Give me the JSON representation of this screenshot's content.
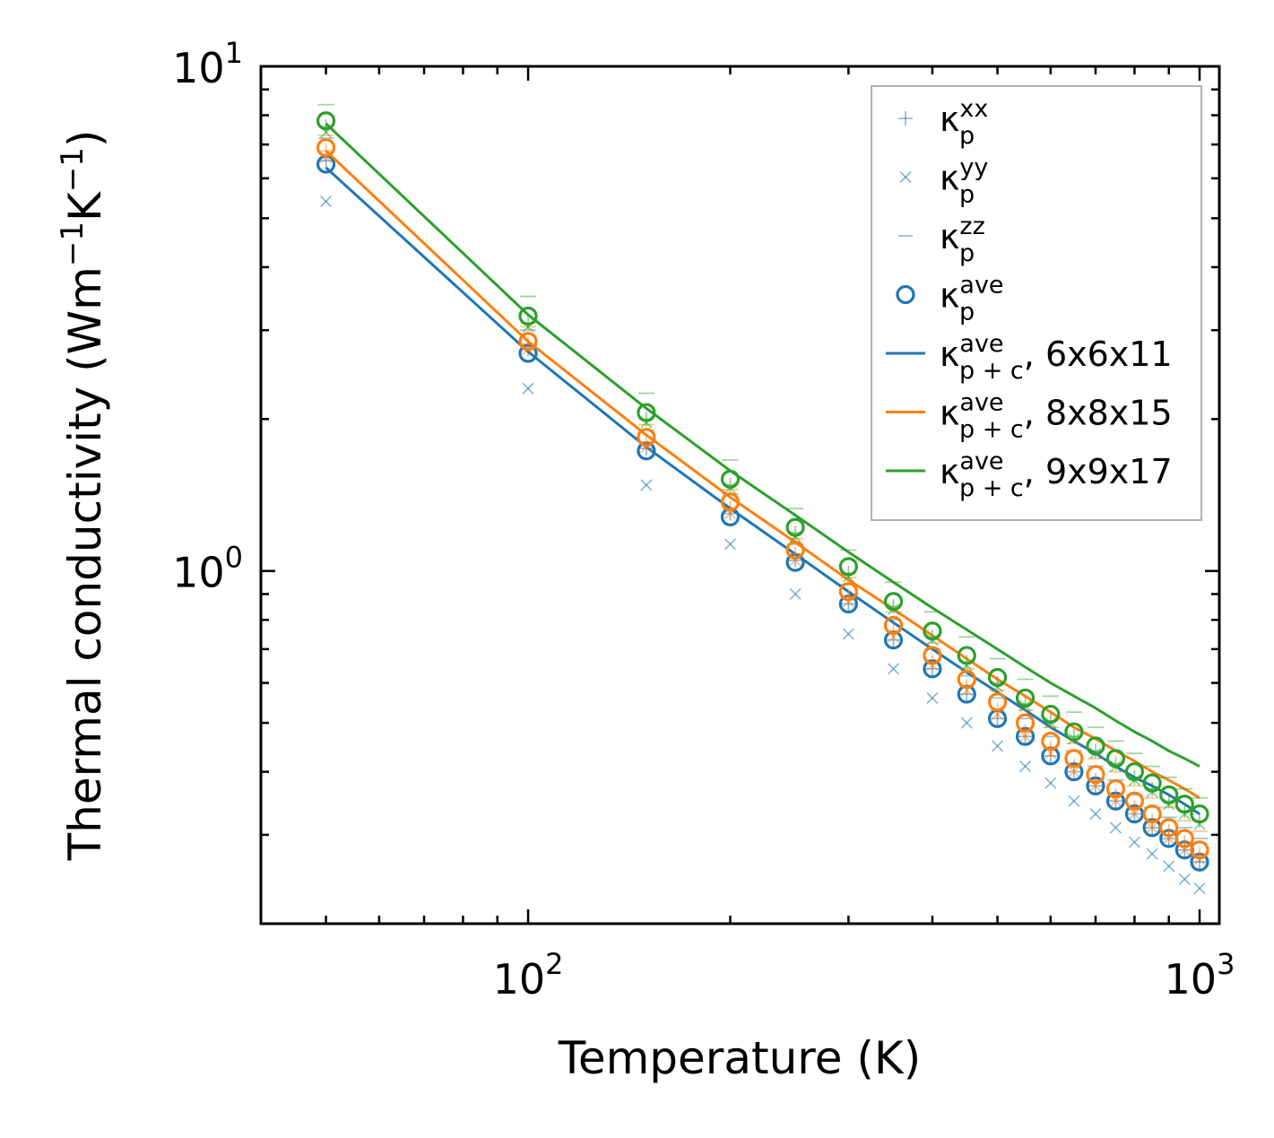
{
  "chart_data": {
    "type": "scatter",
    "title": "",
    "xlabel": "Temperature (K)",
    "ylabel_main": "Thermal conductivity (Wm",
    "ylabel_sup1": "−1",
    "ylabel_mid": "K",
    "ylabel_sup2": "−1",
    "ylabel_end": ")",
    "xscale": "log",
    "yscale": "log",
    "xlim": [
      40,
      1070
    ],
    "ylim": [
      0.2,
      10
    ],
    "x_ticks": [
      {
        "value": 100,
        "base": "10",
        "exp": "2"
      },
      {
        "value": 1000,
        "base": "10",
        "exp": "3"
      }
    ],
    "y_ticks": [
      {
        "value": 1,
        "base": "10",
        "exp": "0"
      },
      {
        "value": 10,
        "base": "10",
        "exp": "1"
      }
    ],
    "x": [
      50,
      100,
      150,
      200,
      250,
      300,
      350,
      400,
      450,
      500,
      550,
      600,
      650,
      700,
      750,
      800,
      850,
      900,
      950,
      1000
    ],
    "series": [
      {
        "name": "6x6x11",
        "color": "#1f77b4",
        "kxx": [
          6.5,
          2.75,
          1.75,
          1.3,
          1.05,
          0.86,
          0.73,
          0.64,
          0.57,
          0.51,
          0.47,
          0.43,
          0.4,
          0.375,
          0.35,
          0.33,
          0.31,
          0.295,
          0.28,
          0.265
        ],
        "kyy": [
          5.4,
          2.3,
          1.48,
          1.13,
          0.9,
          0.75,
          0.64,
          0.56,
          0.5,
          0.45,
          0.41,
          0.38,
          0.35,
          0.33,
          0.31,
          0.29,
          0.275,
          0.26,
          0.245,
          0.235
        ],
        "kzz": [
          7.2,
          3.0,
          1.9,
          1.42,
          1.13,
          0.94,
          0.8,
          0.7,
          0.62,
          0.56,
          0.51,
          0.47,
          0.44,
          0.41,
          0.385,
          0.36,
          0.34,
          0.325,
          0.31,
          0.295
        ],
        "kave": [
          6.4,
          2.7,
          1.73,
          1.28,
          1.04,
          0.86,
          0.73,
          0.64,
          0.57,
          0.51,
          0.47,
          0.43,
          0.4,
          0.375,
          0.35,
          0.33,
          0.31,
          0.295,
          0.28,
          0.265
        ],
        "kpc": [
          6.3,
          2.72,
          1.76,
          1.33,
          1.08,
          0.91,
          0.79,
          0.7,
          0.63,
          0.575,
          0.53,
          0.49,
          0.46,
          0.435,
          0.41,
          0.39,
          0.375,
          0.36,
          0.345,
          0.33
        ]
      },
      {
        "name": "8x8x15",
        "color": "#ff7f0e",
        "kxx": [
          6.8,
          2.82,
          1.8,
          1.33,
          1.08,
          0.89,
          0.76,
          0.66,
          0.59,
          0.53,
          0.48,
          0.445,
          0.41,
          0.385,
          0.36,
          0.34,
          0.32,
          0.305,
          0.29,
          0.275
        ],
        "kyy": [
          6.6,
          2.75,
          1.76,
          1.3,
          1.05,
          0.87,
          0.74,
          0.65,
          0.58,
          0.52,
          0.47,
          0.435,
          0.4,
          0.375,
          0.35,
          0.33,
          0.31,
          0.295,
          0.28,
          0.268
        ],
        "kzz": [
          7.3,
          3.05,
          1.95,
          1.45,
          1.16,
          0.97,
          0.83,
          0.72,
          0.64,
          0.58,
          0.53,
          0.49,
          0.455,
          0.425,
          0.4,
          0.375,
          0.355,
          0.34,
          0.32,
          0.305
        ],
        "kave": [
          6.9,
          2.85,
          1.84,
          1.37,
          1.1,
          0.91,
          0.78,
          0.68,
          0.61,
          0.55,
          0.5,
          0.46,
          0.425,
          0.395,
          0.37,
          0.35,
          0.33,
          0.31,
          0.295,
          0.28
        ],
        "kpc": [
          6.8,
          2.85,
          1.86,
          1.4,
          1.14,
          0.96,
          0.84,
          0.745,
          0.67,
          0.61,
          0.565,
          0.525,
          0.49,
          0.465,
          0.44,
          0.42,
          0.4,
          0.385,
          0.37,
          0.355
        ]
      },
      {
        "name": "9x9x17",
        "color": "#2ca02c",
        "kxx": [
          7.6,
          3.1,
          2.0,
          1.48,
          1.19,
          0.99,
          0.85,
          0.74,
          0.66,
          0.6,
          0.545,
          0.505,
          0.47,
          0.44,
          0.415,
          0.39,
          0.37,
          0.35,
          0.335,
          0.32
        ],
        "kyy": [
          7.4,
          3.05,
          1.97,
          1.46,
          1.17,
          0.975,
          0.84,
          0.73,
          0.65,
          0.59,
          0.54,
          0.5,
          0.465,
          0.435,
          0.41,
          0.385,
          0.365,
          0.345,
          0.33,
          0.315
        ],
        "kzz": [
          8.4,
          3.5,
          2.25,
          1.66,
          1.33,
          1.1,
          0.95,
          0.83,
          0.74,
          0.67,
          0.61,
          0.565,
          0.525,
          0.49,
          0.46,
          0.435,
          0.41,
          0.39,
          0.37,
          0.355
        ],
        "kave": [
          7.8,
          3.2,
          2.06,
          1.52,
          1.22,
          1.02,
          0.87,
          0.76,
          0.68,
          0.615,
          0.56,
          0.52,
          0.48,
          0.45,
          0.425,
          0.4,
          0.38,
          0.36,
          0.345,
          0.33
        ],
        "kpc": [
          7.7,
          3.22,
          2.1,
          1.58,
          1.29,
          1.09,
          0.95,
          0.845,
          0.765,
          0.7,
          0.645,
          0.6,
          0.565,
          0.535,
          0.505,
          0.48,
          0.46,
          0.44,
          0.425,
          0.41
        ]
      }
    ],
    "legend": {
      "position": "top-right",
      "entries": [
        {
          "marker": "plus",
          "sym": "κ",
          "sub": "p",
          "sup": "xx",
          "suffix": ""
        },
        {
          "marker": "x",
          "sym": "κ",
          "sub": "p",
          "sup": "yy",
          "suffix": ""
        },
        {
          "marker": "hline",
          "sym": "κ",
          "sub": "p",
          "sup": "zz",
          "suffix": ""
        },
        {
          "marker": "circle",
          "sym": "κ",
          "sub": "p",
          "sup": "ave",
          "suffix": ""
        },
        {
          "marker": "line",
          "series": 0,
          "sym": "κ",
          "sub": "p + c",
          "sup": "ave",
          "suffix": ", 6x6x11"
        },
        {
          "marker": "line",
          "series": 1,
          "sym": "κ",
          "sub": "p + c",
          "sup": "ave",
          "suffix": ", 8x8x15"
        },
        {
          "marker": "line",
          "series": 2,
          "sym": "κ",
          "sub": "p + c",
          "sup": "ave",
          "suffix": ", 9x9x17"
        }
      ]
    }
  }
}
